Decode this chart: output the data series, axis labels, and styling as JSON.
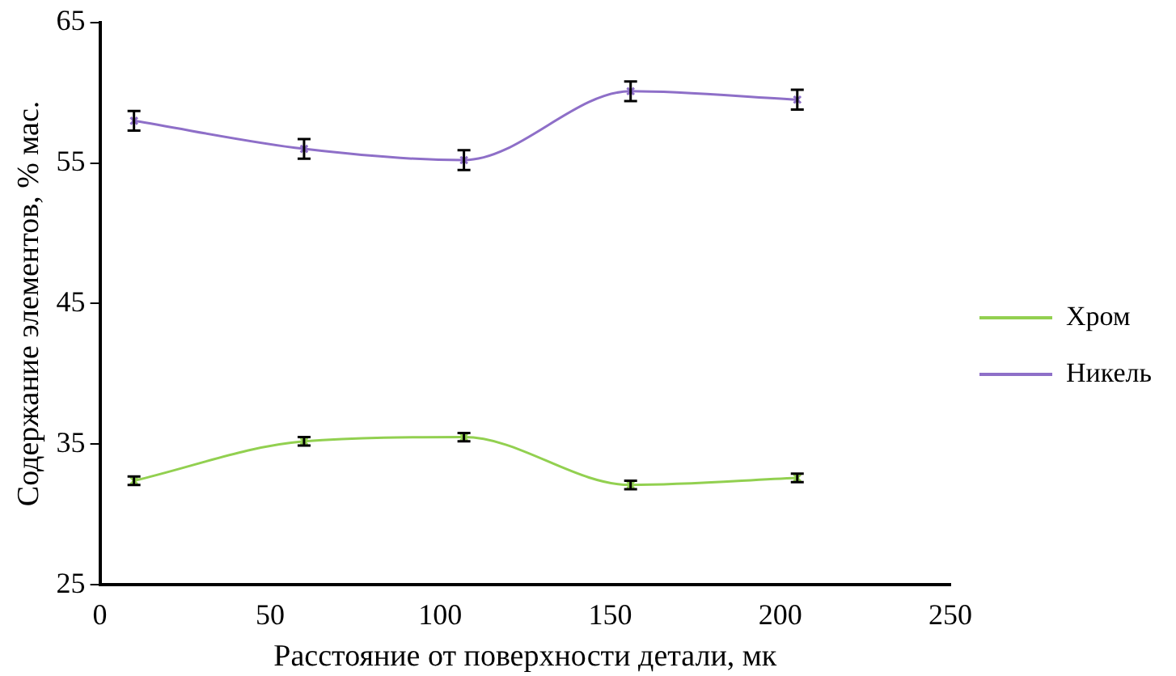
{
  "chart_data": {
    "type": "line",
    "xlabel": "Расстояние от поверхности детали, мк",
    "ylabel": "Содержание элементов, % мас.",
    "x": [
      10,
      60,
      107,
      156,
      205
    ],
    "series": [
      {
        "name": "Хром",
        "color": "#92d050",
        "values": [
          32.4,
          35.2,
          35.5,
          32.1,
          32.6
        ],
        "errors": [
          0.3,
          0.3,
          0.3,
          0.3,
          0.3
        ]
      },
      {
        "name": "Никель",
        "color": "#8e6fc8",
        "values": [
          58.0,
          56.0,
          55.2,
          60.1,
          59.5
        ],
        "errors": [
          0.7,
          0.7,
          0.7,
          0.7,
          0.7
        ]
      }
    ],
    "xlim": [
      0,
      250
    ],
    "xticks": [
      0,
      50,
      100,
      150,
      200,
      250
    ],
    "ylim": [
      25,
      65
    ],
    "yticks": [
      25,
      35,
      45,
      55,
      65
    ],
    "grid": false,
    "legend": "right",
    "marker": "cross",
    "line_style": "solid"
  }
}
